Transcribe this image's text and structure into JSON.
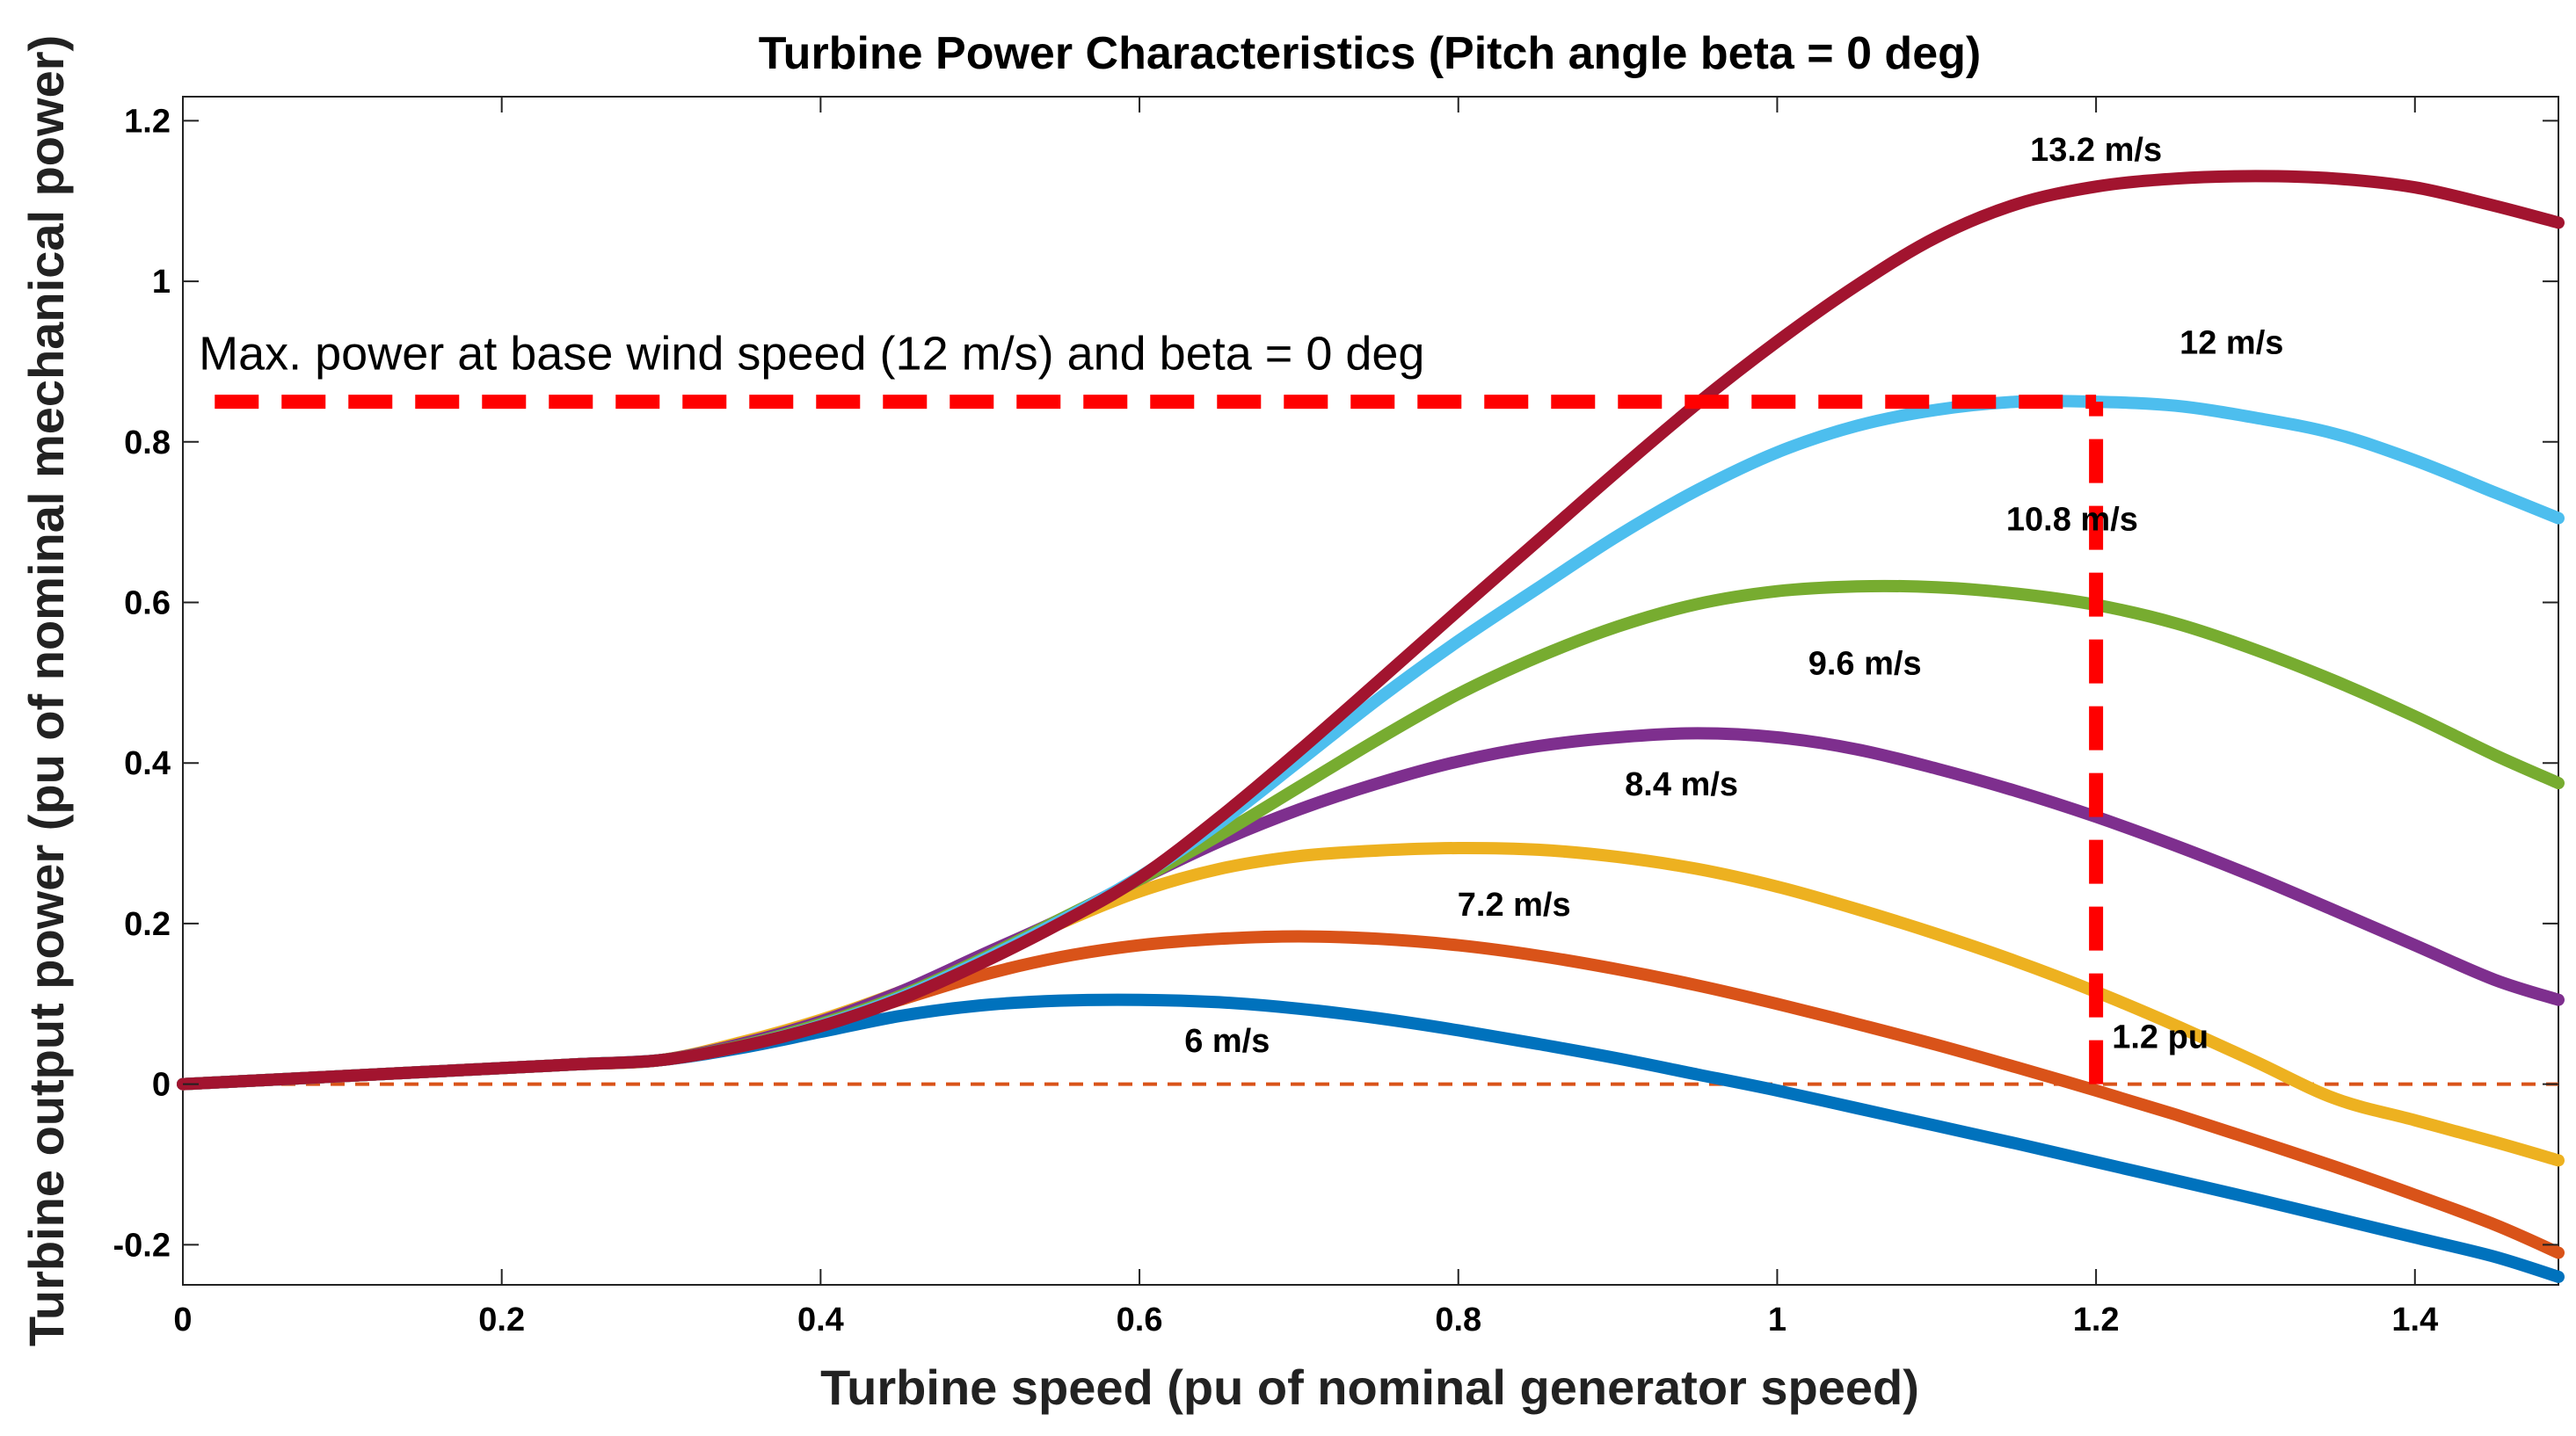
{
  "chart_data": {
    "type": "line",
    "title": "Turbine Power Characteristics (Pitch angle beta = 0 deg)",
    "xlabel": "Turbine speed (pu of nominal generator speed)",
    "ylabel": "Turbine output power (pu of nominal mechanical power)",
    "xlim": [
      0,
      1.49
    ],
    "ylim": [
      -0.25,
      1.23
    ],
    "xticks": [
      0,
      0.2,
      0.4,
      0.6,
      0.8,
      1,
      1.2,
      1.4
    ],
    "xtick_labels": [
      "0",
      "0.2",
      "0.4",
      "0.6",
      "0.8",
      "1",
      "1.2",
      "1.4"
    ],
    "yticks": [
      -0.2,
      0,
      0.2,
      0.4,
      0.6,
      0.8,
      1,
      1.2
    ],
    "ytick_labels": [
      "-0.2",
      "0",
      "0.2",
      "0.4",
      "0.6",
      "0.8",
      "1",
      "1.2"
    ],
    "grid": false,
    "x": [
      0,
      0.05,
      0.1,
      0.15,
      0.2,
      0.25,
      0.3,
      0.35,
      0.4,
      0.45,
      0.5,
      0.55,
      0.6,
      0.65,
      0.7,
      0.75,
      0.8,
      0.85,
      0.9,
      0.95,
      1.0,
      1.05,
      1.1,
      1.15,
      1.2,
      1.25,
      1.3,
      1.35,
      1.4,
      1.45,
      1.49
    ],
    "series": [
      {
        "name": "6 m/s",
        "color": "#0072BD",
        "values": [
          0.0,
          0.005,
          0.01,
          0.015,
          0.02,
          0.025,
          0.03,
          0.045,
          0.065,
          0.085,
          0.098,
          0.104,
          0.105,
          0.102,
          0.094,
          0.082,
          0.067,
          0.05,
          0.032,
          0.012,
          -0.008,
          -0.03,
          -0.052,
          -0.074,
          -0.097,
          -0.12,
          -0.143,
          -0.167,
          -0.191,
          -0.215,
          -0.24
        ]
      },
      {
        "name": "7.2 m/s",
        "color": "#D95319",
        "values": [
          0.0,
          0.005,
          0.01,
          0.015,
          0.02,
          0.025,
          0.03,
          0.05,
          0.075,
          0.105,
          0.135,
          0.158,
          0.173,
          0.181,
          0.184,
          0.181,
          0.173,
          0.16,
          0.143,
          0.123,
          0.1,
          0.075,
          0.049,
          0.021,
          -0.008,
          -0.038,
          -0.07,
          -0.103,
          -0.138,
          -0.175,
          -0.21
        ]
      },
      {
        "name": "8.4 m/s",
        "color": "#EDB120",
        "values": [
          0.0,
          0.005,
          0.01,
          0.015,
          0.02,
          0.025,
          0.03,
          0.052,
          0.08,
          0.115,
          0.155,
          0.2,
          0.24,
          0.268,
          0.284,
          0.291,
          0.294,
          0.292,
          0.283,
          0.268,
          0.246,
          0.218,
          0.187,
          0.153,
          0.115,
          0.073,
          0.028,
          -0.018,
          -0.045,
          -0.072,
          -0.095
        ]
      },
      {
        "name": "9.6 m/s",
        "color": "#7E2F8E",
        "values": [
          0.0,
          0.005,
          0.01,
          0.015,
          0.02,
          0.025,
          0.03,
          0.05,
          0.078,
          0.115,
          0.16,
          0.205,
          0.255,
          0.302,
          0.342,
          0.375,
          0.402,
          0.421,
          0.432,
          0.437,
          0.432,
          0.417,
          0.393,
          0.365,
          0.333,
          0.297,
          0.258,
          0.216,
          0.173,
          0.13,
          0.105
        ]
      },
      {
        "name": "10.8 m/s",
        "color": "#77AC30",
        "values": [
          0.0,
          0.005,
          0.01,
          0.015,
          0.02,
          0.025,
          0.03,
          0.048,
          0.075,
          0.11,
          0.155,
          0.205,
          0.255,
          0.31,
          0.37,
          0.43,
          0.486,
          0.532,
          0.57,
          0.598,
          0.614,
          0.62,
          0.619,
          0.611,
          0.597,
          0.574,
          0.541,
          0.502,
          0.458,
          0.41,
          0.375
        ]
      },
      {
        "name": "12 m/s",
        "color": "#4DBEEE",
        "values": [
          0.0,
          0.005,
          0.01,
          0.015,
          0.02,
          0.025,
          0.03,
          0.047,
          0.073,
          0.108,
          0.153,
          0.203,
          0.258,
          0.325,
          0.402,
          0.48,
          0.552,
          0.618,
          0.683,
          0.74,
          0.787,
          0.82,
          0.84,
          0.85,
          0.85,
          0.845,
          0.83,
          0.81,
          0.777,
          0.737,
          0.705
        ]
      },
      {
        "name": "13.2 m/s",
        "color": "#A2142F",
        "values": [
          0.0,
          0.005,
          0.01,
          0.015,
          0.02,
          0.025,
          0.03,
          0.047,
          0.072,
          0.106,
          0.15,
          0.2,
          0.257,
          0.332,
          0.415,
          0.502,
          0.59,
          0.677,
          0.764,
          0.848,
          0.925,
          0.995,
          1.055,
          1.096,
          1.118,
          1.128,
          1.131,
          1.128,
          1.117,
          1.094,
          1.073
        ]
      }
    ],
    "series_labels": [
      {
        "text": "6 m/s",
        "x": 0.655,
        "y": 0.04
      },
      {
        "text": "7.2 m/s",
        "x": 0.835,
        "y": 0.21
      },
      {
        "text": "8.4 m/s",
        "x": 0.94,
        "y": 0.36
      },
      {
        "text": "9.6 m/s",
        "x": 1.055,
        "y": 0.51
      },
      {
        "text": "10.8 m/s",
        "x": 1.185,
        "y": 0.69
      },
      {
        "text": "12 m/s",
        "x": 1.285,
        "y": 0.91
      },
      {
        "text": "13.2 m/s",
        "x": 1.2,
        "y": 1.15
      }
    ],
    "annotations": [
      {
        "text": "Max. power at base wind speed (12 m/s) and beta = 0 deg",
        "x": 0.01,
        "y": 0.89
      },
      {
        "text": "1.2 pu",
        "x": 1.21,
        "y": 0.045
      }
    ],
    "reference_lines": [
      {
        "kind": "hline",
        "y": 0.85,
        "x_from": 0.02,
        "x_to": 1.2,
        "color": "#FF0000",
        "style": "dashed-thick"
      },
      {
        "kind": "vline",
        "x": 1.2,
        "y_from": 0,
        "y_to": 0.85,
        "color": "#FF0000",
        "style": "dashed-thick"
      },
      {
        "kind": "hline",
        "y": 0,
        "x_from": 0,
        "x_to": 1.49,
        "color": "#D95319",
        "style": "dashed-thin"
      }
    ]
  }
}
